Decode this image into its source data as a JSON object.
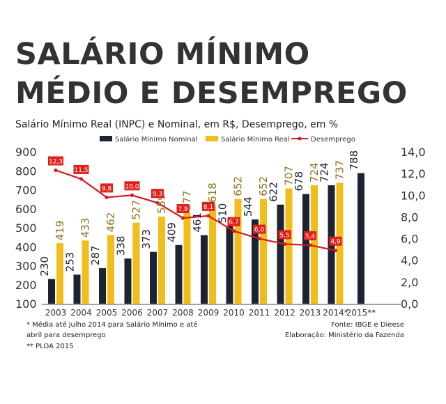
{
  "title_line1": "SALÁRIO MÍNIMO",
  "title_line2": "MÉDIO E DESEMPREGO",
  "subtitle": "Salário Mínimo Real (INPC) e Nominal, em R$, Desemprego, em %",
  "colors": {
    "nominal": "#1c2333",
    "real": "#f2bd1a",
    "desemprego": "#d71920",
    "label_box": "#e0201b"
  },
  "chart_data": {
    "type": "bar",
    "categories": [
      "2003",
      "2004",
      "2005",
      "2006",
      "2007",
      "2008",
      "2009",
      "2010",
      "2011",
      "2012",
      "2013",
      "2014*",
      "2015**"
    ],
    "series": [
      {
        "name": "Salário Mínimo Nominal",
        "type": "bar",
        "axis": "left",
        "values": [
          230,
          253,
          287,
          338,
          373,
          409,
          461,
          510,
          544,
          622,
          678,
          724,
          788
        ]
      },
      {
        "name": "Salário Mínimo Real",
        "type": "bar",
        "axis": "left",
        "values": [
          419,
          433,
          462,
          527,
          559,
          577,
          618,
          652,
          652,
          707,
          724,
          737,
          null
        ]
      },
      {
        "name": "Desemprego",
        "type": "line",
        "axis": "right",
        "values": [
          12.3,
          11.5,
          9.8,
          10.0,
          9.3,
          7.9,
          8.1,
          6.7,
          6.0,
          5.5,
          5.4,
          4.9,
          null
        ],
        "labels": [
          "12,3",
          "11,5",
          "9,8",
          "10,0",
          "9,3",
          "7,9",
          "8,1",
          "6,7",
          "6,0",
          "5,5",
          "5,4",
          "4,9",
          null
        ]
      }
    ],
    "y_left": {
      "min": 100,
      "max": 900,
      "ticks": [
        100,
        200,
        300,
        400,
        500,
        600,
        700,
        800,
        900
      ]
    },
    "y_right": {
      "min": 0,
      "max": 14,
      "ticks": [
        "0,0",
        "2,0",
        "4,0",
        "6,0",
        "8,0",
        "10,0",
        "12,0",
        "14,0"
      ]
    },
    "legend_position": "top",
    "grid": false
  },
  "notes": {
    "footnote1_line1": "* Média até julho 2014 para Salário Mínimo e até",
    "footnote1_line2": "abril para desemprego",
    "footnote2": "** PLOA 2015",
    "source": "Fonte: IBGE e Dieese",
    "elaboration": "Elaboração: Ministério da Fazenda"
  }
}
